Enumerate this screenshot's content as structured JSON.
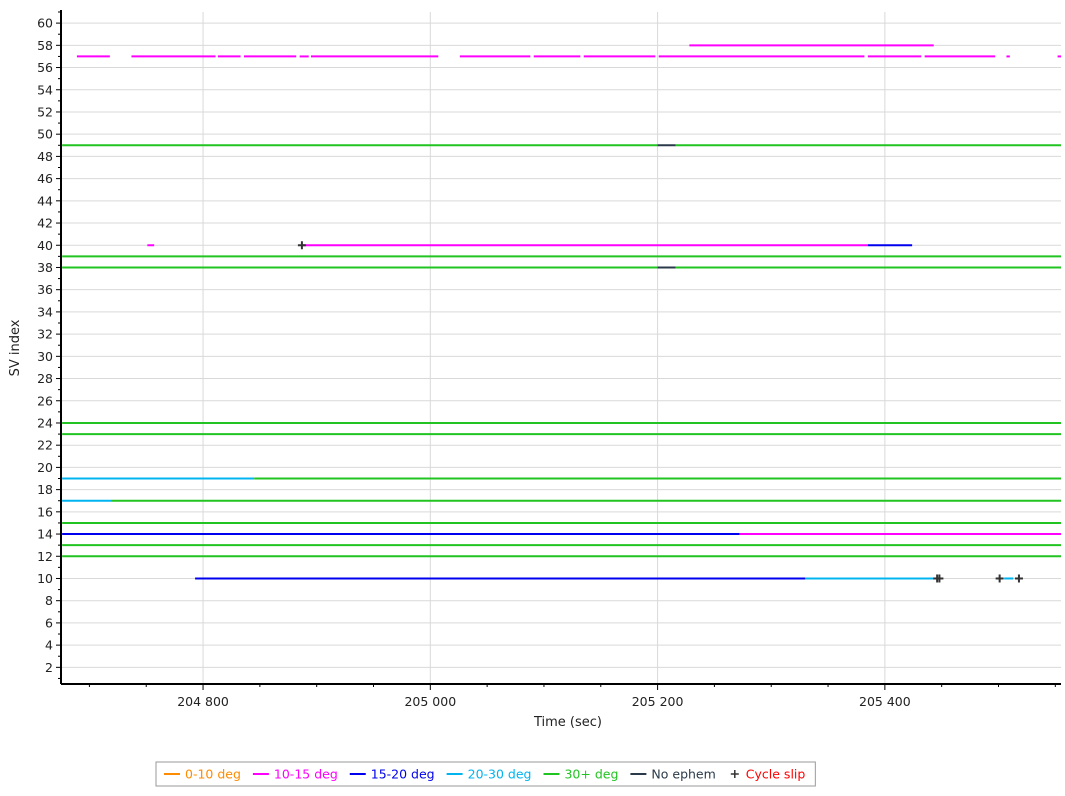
{
  "chart_data": {
    "type": "line",
    "title": "",
    "xlabel": "Time (sec)",
    "ylabel": "SV index",
    "xlim": [
      204675,
      205555
    ],
    "ylim": [
      0.5,
      61
    ],
    "grid": true,
    "legend_position": "bottom-center",
    "x_ticks": [
      204800,
      205000,
      205200,
      205400
    ],
    "x_tick_labels": [
      "204 800",
      "205 000",
      "205 200",
      "205 400"
    ],
    "y_ticks": [
      2,
      4,
      6,
      8,
      10,
      12,
      14,
      16,
      18,
      20,
      22,
      24,
      26,
      28,
      30,
      32,
      34,
      36,
      38,
      40,
      42,
      44,
      46,
      48,
      50,
      52,
      54,
      56,
      58,
      60
    ],
    "y_tick_labels": [
      "2",
      "4",
      "6",
      "8",
      "10",
      "12",
      "14",
      "16",
      "18",
      "20",
      "22",
      "24",
      "26",
      "28",
      "30",
      "32",
      "34",
      "36",
      "38",
      "40",
      "42",
      "44",
      "46",
      "48",
      "50",
      "52",
      "54",
      "56",
      "58",
      "60"
    ],
    "legend": [
      {
        "key": "0-10",
        "label": "0-10 deg",
        "color": "#ff8c00",
        "marker": "line"
      },
      {
        "key": "10-15",
        "label": "10-15 deg",
        "color": "#ff00ff",
        "marker": "line"
      },
      {
        "key": "15-20",
        "label": "15-20 deg",
        "color": "#0000ee",
        "marker": "line"
      },
      {
        "key": "20-30",
        "label": "20-30 deg",
        "color": "#00b4f0",
        "marker": "line"
      },
      {
        "key": "30+",
        "label": "30+ deg",
        "color": "#22c422",
        "marker": "line"
      },
      {
        "key": "noeph",
        "label": "No ephem",
        "color": "#2a3a4a",
        "marker": "line"
      },
      {
        "key": "slip",
        "label": "Cycle slip",
        "color": "#ff0000",
        "marker": "plus"
      }
    ],
    "segments": [
      {
        "sv": 57,
        "cat": "10-15",
        "from": 204689,
        "to": 204718
      },
      {
        "sv": 57,
        "cat": "10-15",
        "from": 204737,
        "to": 204811
      },
      {
        "sv": 57,
        "cat": "10-15",
        "from": 204813,
        "to": 204833
      },
      {
        "sv": 57,
        "cat": "10-15",
        "from": 204836,
        "to": 204882
      },
      {
        "sv": 57,
        "cat": "10-15",
        "from": 204885,
        "to": 204893
      },
      {
        "sv": 57,
        "cat": "10-15",
        "from": 204895,
        "to": 205007
      },
      {
        "sv": 57,
        "cat": "10-15",
        "from": 205026,
        "to": 205088
      },
      {
        "sv": 57,
        "cat": "10-15",
        "from": 205091,
        "to": 205132
      },
      {
        "sv": 57,
        "cat": "10-15",
        "from": 205135,
        "to": 205198
      },
      {
        "sv": 57,
        "cat": "10-15",
        "from": 205201,
        "to": 205382
      },
      {
        "sv": 57,
        "cat": "10-15",
        "from": 205385,
        "to": 205432
      },
      {
        "sv": 57,
        "cat": "10-15",
        "from": 205435,
        "to": 205497
      },
      {
        "sv": 57,
        "cat": "10-15",
        "from": 205507,
        "to": 205510
      },
      {
        "sv": 57,
        "cat": "10-15",
        "from": 205552,
        "to": 205555
      },
      {
        "sv": 58,
        "cat": "10-15",
        "from": 205228,
        "to": 205443
      },
      {
        "sv": 49,
        "cat": "30+",
        "from": 204676,
        "to": 205200
      },
      {
        "sv": 49,
        "cat": "noeph",
        "from": 205200,
        "to": 205216
      },
      {
        "sv": 49,
        "cat": "30+",
        "from": 205216,
        "to": 205555
      },
      {
        "sv": 40,
        "cat": "10-15",
        "from": 204751,
        "to": 204757
      },
      {
        "sv": 40,
        "cat": "10-15",
        "from": 204887,
        "to": 205385
      },
      {
        "sv": 40,
        "cat": "15-20",
        "from": 205385,
        "to": 205424
      },
      {
        "sv": 39,
        "cat": "30+",
        "from": 204676,
        "to": 205555
      },
      {
        "sv": 38,
        "cat": "30+",
        "from": 204676,
        "to": 205200
      },
      {
        "sv": 38,
        "cat": "noeph",
        "from": 205200,
        "to": 205216
      },
      {
        "sv": 38,
        "cat": "30+",
        "from": 205216,
        "to": 205555
      },
      {
        "sv": 24,
        "cat": "30+",
        "from": 204676,
        "to": 205555
      },
      {
        "sv": 23,
        "cat": "30+",
        "from": 204676,
        "to": 205555
      },
      {
        "sv": 19,
        "cat": "20-30",
        "from": 204676,
        "to": 204845
      },
      {
        "sv": 19,
        "cat": "30+",
        "from": 204845,
        "to": 205555
      },
      {
        "sv": 17,
        "cat": "20-30",
        "from": 204676,
        "to": 204719
      },
      {
        "sv": 17,
        "cat": "30+",
        "from": 204719,
        "to": 205555
      },
      {
        "sv": 15,
        "cat": "30+",
        "from": 204676,
        "to": 205555
      },
      {
        "sv": 14,
        "cat": "15-20",
        "from": 204676,
        "to": 205272
      },
      {
        "sv": 14,
        "cat": "10-15",
        "from": 205272,
        "to": 205555
      },
      {
        "sv": 13,
        "cat": "30+",
        "from": 204676,
        "to": 205555
      },
      {
        "sv": 12,
        "cat": "30+",
        "from": 204676,
        "to": 205555
      },
      {
        "sv": 10,
        "cat": "15-20",
        "from": 204793,
        "to": 205330
      },
      {
        "sv": 10,
        "cat": "20-30",
        "from": 205330,
        "to": 205449
      },
      {
        "sv": 10,
        "cat": "20-30",
        "from": 205505,
        "to": 205513
      }
    ],
    "cycle_slips": [
      {
        "sv": 40,
        "x": 204887
      },
      {
        "sv": 10,
        "x": 205446
      },
      {
        "sv": 10,
        "x": 205448
      },
      {
        "sv": 10,
        "x": 205501
      },
      {
        "sv": 10,
        "x": 205518
      }
    ]
  }
}
